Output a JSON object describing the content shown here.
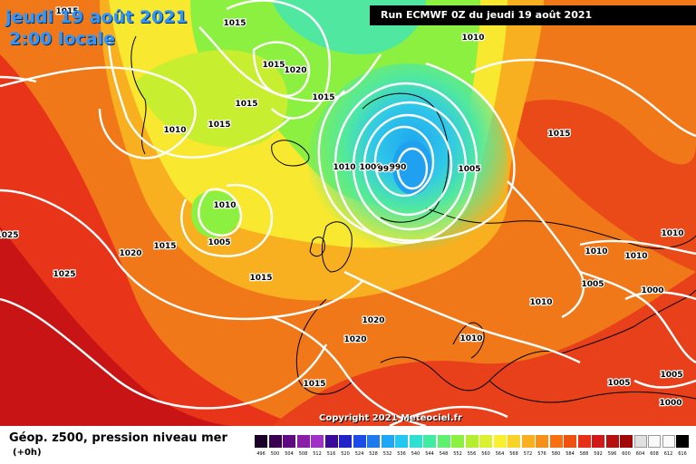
{
  "header": {
    "date": "jeudi 19 août 2021",
    "local_time": "2:00 locale",
    "run_info": "Run ECMWF 0Z du jeudi 19 août 2021"
  },
  "map": {
    "copyright": "Copyright 2021 Meteociel.fr",
    "pressure_labels": [
      "1015",
      "1015",
      "1015",
      "1020",
      "1015",
      "1010",
      "1015",
      "1015",
      "1010",
      "1010",
      "1000",
      "995",
      "990",
      "1005",
      "1015",
      "1010",
      "1005",
      "1020",
      "1015",
      "1025",
      "1015",
      "1025",
      "1010",
      "1010",
      "1005",
      "1010",
      "1000",
      "1020",
      "1020",
      "1010",
      "1010",
      "1005",
      "1015",
      "1005",
      "1000"
    ]
  },
  "legend": {
    "title": "Géop. z500, pression niveau mer",
    "step": "(+0h)",
    "scale_values": [
      "496",
      "500",
      "504",
      "508",
      "512",
      "516",
      "520",
      "524",
      "528",
      "532",
      "536",
      "540",
      "544",
      "548",
      "552",
      "556",
      "560",
      "564",
      "568",
      "572",
      "576",
      "580",
      "584",
      "588",
      "592",
      "596",
      "600",
      "604",
      "608",
      "612",
      "616"
    ],
    "scale_colors": [
      "#1a0026",
      "#3a0050",
      "#5e0a80",
      "#8a1ea8",
      "#a030c8",
      "#3a0a9a",
      "#2222c8",
      "#1e4be6",
      "#1e78f0",
      "#1ea6f8",
      "#22c8f0",
      "#2ee0d0",
      "#40eca0",
      "#60f070",
      "#8cf040",
      "#b4ee30",
      "#daf030",
      "#f8f030",
      "#f8d428",
      "#f8b020",
      "#f89018",
      "#f87010",
      "#f05010",
      "#e63018",
      "#d21818",
      "#b81010",
      "#a00808",
      "#e0e0e0",
      "#f8f8f8",
      "#fafafa",
      "#000000"
    ]
  }
}
